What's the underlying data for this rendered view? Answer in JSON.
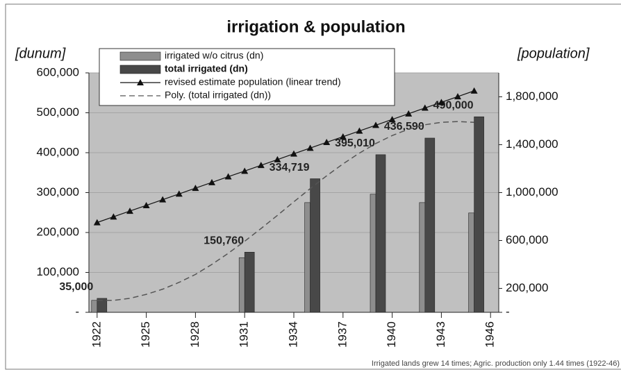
{
  "chart_data": {
    "type": "bar",
    "title": "irrigation & population",
    "y_label": "[dunum]",
    "y2_label": "[population]",
    "footnote": "Irrigated lands grew 14 times; Agric. production only 1.44 times (1922-46)",
    "xlim": [
      1921.5,
      1946.5
    ],
    "xticks": [
      1922,
      1925,
      1928,
      1931,
      1934,
      1937,
      1940,
      1943,
      1946
    ],
    "ylim": [
      0,
      600000
    ],
    "yticks": [
      {
        "value": 0,
        "label": "-"
      },
      {
        "value": 100000,
        "label": "100,000"
      },
      {
        "value": 200000,
        "label": "200,000"
      },
      {
        "value": 300000,
        "label": "300,000"
      },
      {
        "value": 400000,
        "label": "400,000"
      },
      {
        "value": 500000,
        "label": "500,000"
      },
      {
        "value": 600000,
        "label": "600,000"
      }
    ],
    "y2lim": [
      0,
      2000000
    ],
    "y2ticks": [
      {
        "value": 0,
        "label": "-"
      },
      {
        "value": 200000,
        "label": "200,000"
      },
      {
        "value": 600000,
        "label": "600,000"
      },
      {
        "value": 1000000,
        "label": "1,000,000"
      },
      {
        "value": 1400000,
        "label": "1,400,000"
      },
      {
        "value": 1800000,
        "label": "1,800,000"
      }
    ],
    "grid": true,
    "series": [
      {
        "name": "irrigated w/o citrus (dn)",
        "type": "bar",
        "color": "#8e8e8e",
        "x": [
          1922,
          1931,
          1935,
          1939,
          1942,
          1945
        ],
        "values": [
          30000,
          137000,
          275000,
          296000,
          275000,
          249000
        ]
      },
      {
        "name": "total irrigated (dn)",
        "type": "bar",
        "color": "#484848",
        "x": [
          1922,
          1931,
          1935,
          1939,
          1942,
          1945
        ],
        "values": [
          35000,
          150760,
          334719,
          395010,
          436590,
          490000
        ],
        "value_labels": [
          "35,000",
          "150,760",
          "334,719",
          "395,010",
          "436,590",
          "490,000"
        ]
      },
      {
        "name": "revised estimate population (linear trend)",
        "type": "line",
        "axis": "y2",
        "color": "#111111",
        "marker": "triangle",
        "x": [
          1922,
          1923,
          1924,
          1925,
          1926,
          1927,
          1928,
          1929,
          1930,
          1931,
          1932,
          1933,
          1934,
          1935,
          1936,
          1937,
          1938,
          1939,
          1940,
          1941,
          1942,
          1943,
          1944,
          1945
        ],
        "values": [
          750000,
          798000,
          846000,
          893000,
          941000,
          989000,
          1037000,
          1085000,
          1133000,
          1180000,
          1228000,
          1276000,
          1324000,
          1372000,
          1420000,
          1467000,
          1515000,
          1563000,
          1611000,
          1659000,
          1707000,
          1754000,
          1802000,
          1850000
        ]
      },
      {
        "name": "Poly. (total irrigated (dn))",
        "type": "line",
        "dashed": true,
        "color": "#555555",
        "x": [
          1922,
          1923,
          1924,
          1925,
          1926,
          1927,
          1928,
          1929,
          1930,
          1931,
          1932,
          1933,
          1934,
          1935,
          1936,
          1937,
          1938,
          1939,
          1940,
          1941,
          1942,
          1943,
          1944,
          1945
        ],
        "values": [
          30000,
          30000,
          35000,
          45000,
          58000,
          75000,
          95000,
          120000,
          148000,
          178000,
          210000,
          243000,
          277000,
          310000,
          342000,
          372000,
          399000,
          423000,
          443000,
          459000,
          470000,
          476000,
          478000,
          476000
        ]
      }
    ]
  }
}
